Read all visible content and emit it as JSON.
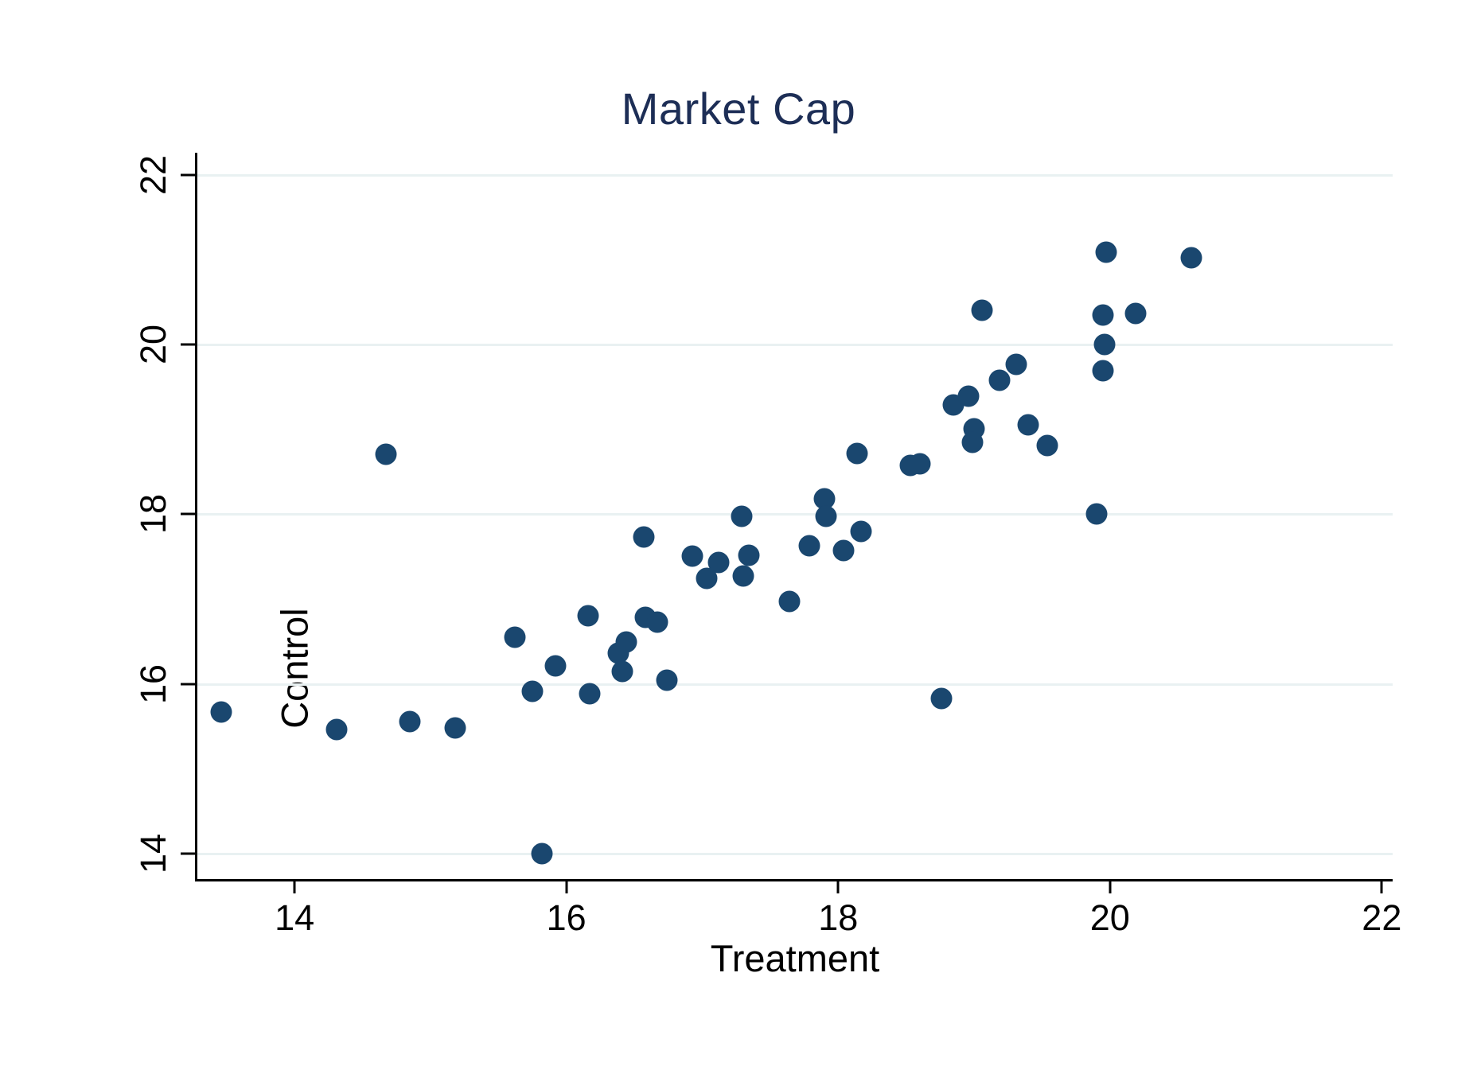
{
  "title": "Market Cap",
  "colors": {
    "title": "#1d2e56",
    "marker": "#1a476f",
    "gridline": "#e9f1f2",
    "axis": "#000000",
    "background": "#ffffff"
  },
  "chart_data": {
    "type": "scatter",
    "title": "Market Cap",
    "xlabel": "Treatment",
    "ylabel": "Control",
    "x_ticks": [
      14,
      16,
      18,
      20,
      22
    ],
    "y_ticks": [
      14,
      16,
      18,
      20,
      22
    ],
    "xlim": [
      13.285,
      22.08
    ],
    "ylim": [
      13.7,
      22.26
    ],
    "grid": "horizontal gridlines only",
    "legend": "none",
    "points": [
      [
        13.46,
        15.67
      ],
      [
        14.31,
        15.46
      ],
      [
        14.67,
        18.71
      ],
      [
        14.85,
        15.56
      ],
      [
        15.18,
        15.48
      ],
      [
        15.62,
        16.55
      ],
      [
        15.75,
        15.91
      ],
      [
        15.82,
        14.0
      ],
      [
        15.92,
        16.21
      ],
      [
        16.16,
        16.8
      ],
      [
        16.17,
        15.88
      ],
      [
        16.38,
        16.36
      ],
      [
        16.41,
        16.15
      ],
      [
        16.44,
        16.49
      ],
      [
        16.57,
        17.73
      ],
      [
        16.58,
        16.78
      ],
      [
        16.67,
        16.73
      ],
      [
        16.74,
        16.04
      ],
      [
        16.93,
        17.51
      ],
      [
        17.03,
        17.24
      ],
      [
        17.12,
        17.43
      ],
      [
        17.3,
        17.27
      ],
      [
        17.34,
        17.52
      ],
      [
        17.29,
        17.98
      ],
      [
        17.64,
        16.97
      ],
      [
        17.79,
        17.63
      ],
      [
        17.9,
        18.18
      ],
      [
        17.91,
        17.98
      ],
      [
        18.04,
        17.57
      ],
      [
        18.17,
        17.8
      ],
      [
        18.14,
        18.72
      ],
      [
        18.53,
        18.58
      ],
      [
        18.6,
        18.59
      ],
      [
        18.76,
        15.83
      ],
      [
        18.85,
        19.29
      ],
      [
        18.96,
        19.39
      ],
      [
        19.0,
        19.01
      ],
      [
        18.99,
        18.85
      ],
      [
        19.06,
        20.4
      ],
      [
        19.19,
        19.58
      ],
      [
        19.31,
        19.77
      ],
      [
        19.4,
        19.05
      ],
      [
        19.54,
        18.81
      ],
      [
        19.9,
        18.0
      ],
      [
        19.95,
        20.35
      ],
      [
        20.19,
        20.37
      ],
      [
        19.97,
        21.09
      ],
      [
        20.6,
        21.02
      ],
      [
        19.96,
        20.0
      ],
      [
        19.95,
        19.69
      ]
    ]
  }
}
